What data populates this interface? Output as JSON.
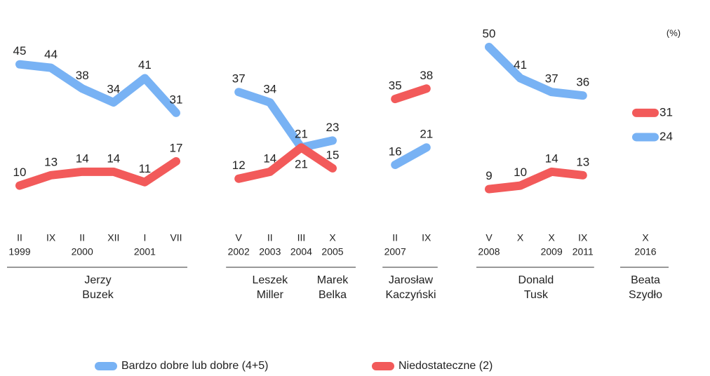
{
  "chart_data": {
    "type": "line",
    "unit": "(%)",
    "series": [
      {
        "name": "Bardzo dobre lub dobre (4+5)",
        "color": "#78b2f4",
        "values": [
          45,
          44,
          38,
          34,
          41,
          31,
          37,
          34,
          21,
          23,
          16,
          21,
          50,
          41,
          37,
          36,
          24
        ]
      },
      {
        "name": "Niedostateczne (2)",
        "color": "#f25a5a",
        "values": [
          10,
          13,
          14,
          14,
          11,
          17,
          12,
          14,
          21,
          15,
          35,
          38,
          9,
          10,
          14,
          13,
          31
        ]
      }
    ],
    "groups": [
      {
        "label": [
          "Jerzy",
          "Buzek"
        ],
        "categories": [
          "II",
          "IX",
          "II",
          "XII",
          "I",
          "VII"
        ],
        "years": [
          "1999",
          null,
          "2000",
          null,
          "2001",
          null
        ]
      },
      {
        "label": [
          "Leszek",
          "Miller"
        ],
        "categories": [
          "V",
          "II",
          "III"
        ],
        "years": [
          "2002",
          "2003",
          "2004"
        ]
      },
      {
        "label": [
          "Marek",
          "Belka"
        ],
        "categories": [
          "X"
        ],
        "years": [
          "2005"
        ],
        "joined": true
      },
      {
        "label": [
          "Jarosław",
          "Kaczyński"
        ],
        "categories": [
          "II",
          "IX"
        ],
        "years": [
          "2007",
          null
        ]
      },
      {
        "label": [
          "Donald",
          "Tusk"
        ],
        "categories": [
          "V",
          "X",
          "X",
          "IX"
        ],
        "years": [
          "2008",
          null,
          "2009",
          "2011"
        ]
      },
      {
        "label": [
          "Beata",
          "Szydło"
        ],
        "categories": [
          "X"
        ],
        "years": [
          "2016"
        ]
      }
    ]
  }
}
